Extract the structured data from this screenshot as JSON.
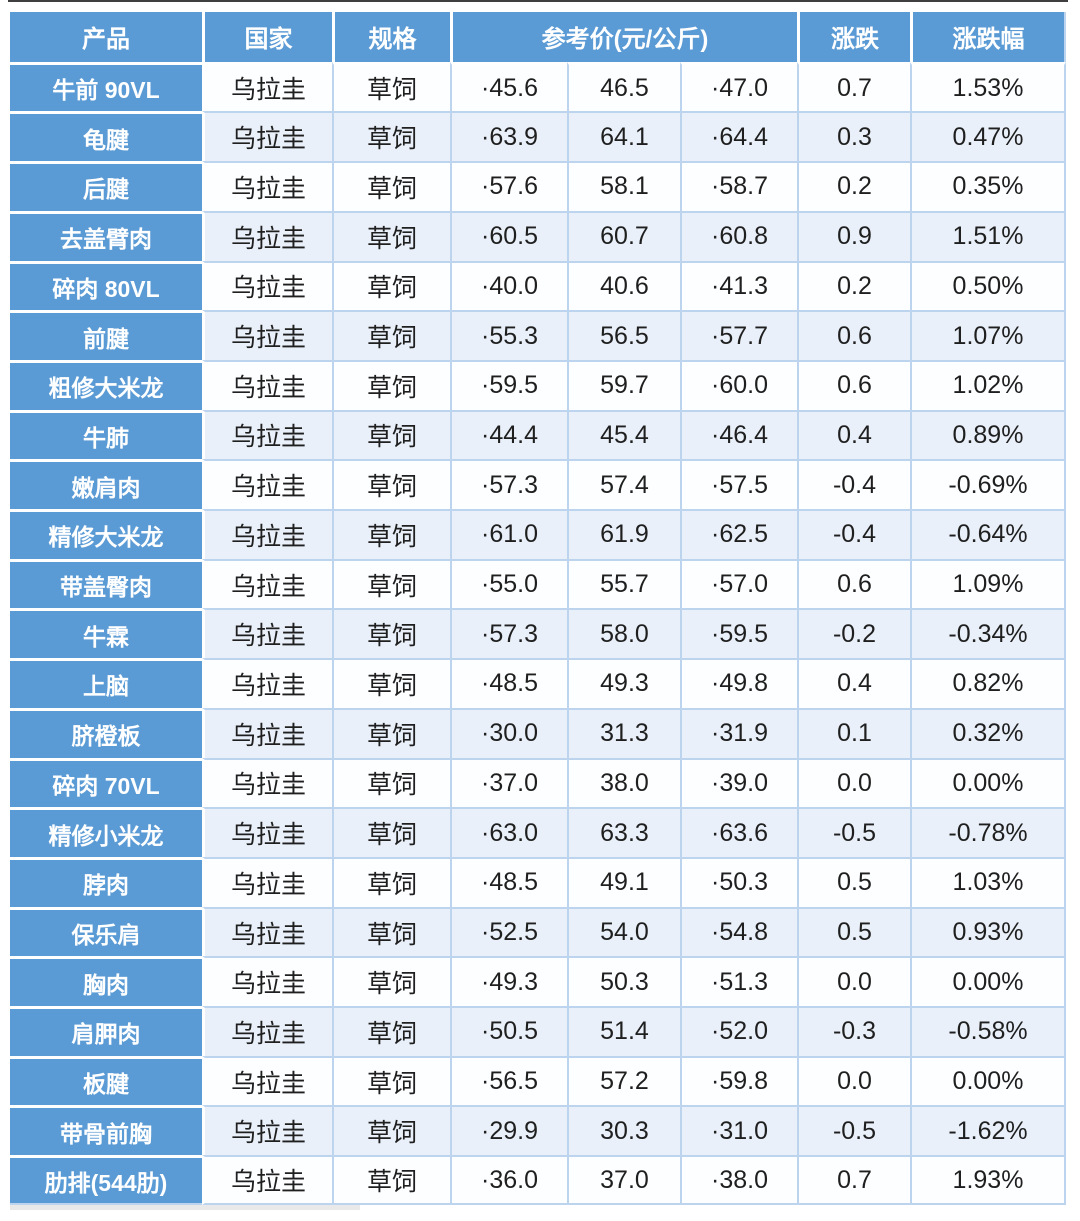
{
  "chart_data": {
    "type": "table",
    "title": "",
    "columns": [
      "产品",
      "国家",
      "规格",
      "参考价(元/公斤)",
      "涨跌",
      "涨跌幅"
    ],
    "row_key_order": [
      "product",
      "country",
      "spec",
      "price_low",
      "price_mid",
      "price_high",
      "change",
      "change_pct"
    ],
    "price_subcolumns": 3,
    "rows": [
      [
        "牛前 90VL",
        "乌拉圭",
        "草饲",
        "·45.6",
        "46.5",
        "·47.0",
        "0.7",
        "1.53%"
      ],
      [
        "龟腱",
        "乌拉圭",
        "草饲",
        "·63.9",
        "64.1",
        "·64.4",
        "0.3",
        "0.47%"
      ],
      [
        "后腱",
        "乌拉圭",
        "草饲",
        "·57.6",
        "58.1",
        "·58.7",
        "0.2",
        "0.35%"
      ],
      [
        "去盖臂肉",
        "乌拉圭",
        "草饲",
        "·60.5",
        "60.7",
        "·60.8",
        "0.9",
        "1.51%"
      ],
      [
        "碎肉 80VL",
        "乌拉圭",
        "草饲",
        "·40.0",
        "40.6",
        "·41.3",
        "0.2",
        "0.50%"
      ],
      [
        "前腱",
        "乌拉圭",
        "草饲",
        "·55.3",
        "56.5",
        "·57.7",
        "0.6",
        "1.07%"
      ],
      [
        "粗修大米龙",
        "乌拉圭",
        "草饲",
        "·59.5",
        "59.7",
        "·60.0",
        "0.6",
        "1.02%"
      ],
      [
        "牛肺",
        "乌拉圭",
        "草饲",
        "·44.4",
        "45.4",
        "·46.4",
        "0.4",
        "0.89%"
      ],
      [
        "嫩肩肉",
        "乌拉圭",
        "草饲",
        "·57.3",
        "57.4",
        "·57.5",
        "-0.4",
        "-0.69%"
      ],
      [
        "精修大米龙",
        "乌拉圭",
        "草饲",
        "·61.0",
        "61.9",
        "·62.5",
        "-0.4",
        "-0.64%"
      ],
      [
        "带盖臀肉",
        "乌拉圭",
        "草饲",
        "·55.0",
        "55.7",
        "·57.0",
        "0.6",
        "1.09%"
      ],
      [
        "牛霖",
        "乌拉圭",
        "草饲",
        "·57.3",
        "58.0",
        "·59.5",
        "-0.2",
        "-0.34%"
      ],
      [
        "上脑",
        "乌拉圭",
        "草饲",
        "·48.5",
        "49.3",
        "·49.8",
        "0.4",
        "0.82%"
      ],
      [
        "脐橙板",
        "乌拉圭",
        "草饲",
        "·30.0",
        "31.3",
        "·31.9",
        "0.1",
        "0.32%"
      ],
      [
        "碎肉 70VL",
        "乌拉圭",
        "草饲",
        "·37.0",
        "38.0",
        "·39.0",
        "0.0",
        "0.00%"
      ],
      [
        "精修小米龙",
        "乌拉圭",
        "草饲",
        "·63.0",
        "63.3",
        "·63.6",
        "-0.5",
        "-0.78%"
      ],
      [
        "脖肉",
        "乌拉圭",
        "草饲",
        "·48.5",
        "49.1",
        "·50.3",
        "0.5",
        "1.03%"
      ],
      [
        "保乐肩",
        "乌拉圭",
        "草饲",
        "·52.5",
        "54.0",
        "·54.8",
        "0.5",
        "0.93%"
      ],
      [
        "胸肉",
        "乌拉圭",
        "草饲",
        "·49.3",
        "50.3",
        "·51.3",
        "0.0",
        "0.00%"
      ],
      [
        "肩胛肉",
        "乌拉圭",
        "草饲",
        "·50.5",
        "51.4",
        "·52.0",
        "-0.3",
        "-0.58%"
      ],
      [
        "板腱",
        "乌拉圭",
        "草饲",
        "·56.5",
        "57.2",
        "·59.8",
        "0.0",
        "0.00%"
      ],
      [
        "带骨前胸",
        "乌拉圭",
        "草饲",
        "·29.9",
        "30.3",
        "·31.0",
        "-0.5",
        "-1.62%"
      ],
      [
        "肋排(544肋)",
        "乌拉圭",
        "草饲",
        "·36.0",
        "37.0",
        "·38.0",
        "0.7",
        "1.93%"
      ]
    ],
    "layout": {
      "alternating_rows": true,
      "grid_on": true
    }
  },
  "styles": {
    "header_bg": "#5b9bd5",
    "row_bg": "#fdfeff",
    "row_alt_bg": "#e9f0f9",
    "grid_line": "#bcd4ee",
    "header_text": "#ffffff",
    "cell_text": "#1f1f1f",
    "top_edge_line": "#3f3f3f"
  }
}
